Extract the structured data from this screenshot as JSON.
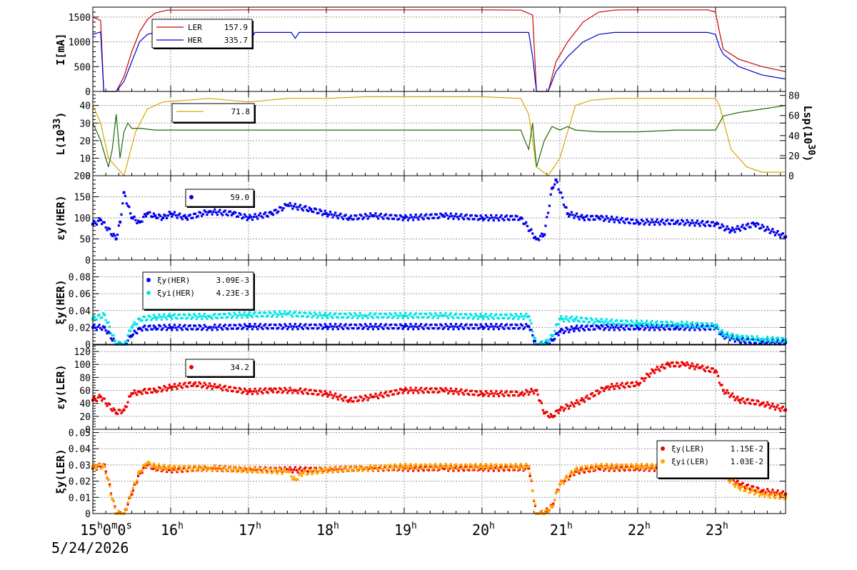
{
  "date_label": "5/24/2026",
  "chart_data": [
    {
      "type": "line",
      "ylabel": "I[mA]",
      "ylim": [
        0,
        1700
      ],
      "yticks": [
        0,
        500,
        1000,
        1500
      ],
      "legend": [
        {
          "name": "LER",
          "value": "157.9",
          "color": "#cc0000"
        },
        {
          "name": "HER",
          "value": "335.7",
          "color": "#0000cc"
        }
      ],
      "series": [
        {
          "name": "LER",
          "color": "#cc0000",
          "x": [
            0,
            0.1,
            0.14,
            0.2,
            0.3,
            0.4,
            0.5,
            0.6,
            0.7,
            0.8,
            0.95,
            1.5,
            2,
            3,
            4,
            5,
            5.5,
            5.65,
            5.7,
            5.75,
            5.85,
            5.95,
            6.1,
            6.3,
            6.5,
            6.7,
            6.8,
            7,
            7.5,
            7.9,
            8.0,
            8.05,
            8.1,
            8.3,
            8.6,
            8.9
          ],
          "y": [
            1500,
            1430,
            0,
            0,
            0,
            300,
            800,
            1200,
            1450,
            1580,
            1640,
            1640,
            1645,
            1645,
            1645,
            1645,
            1640,
            1540,
            0,
            0,
            0,
            600,
            1000,
            1400,
            1600,
            1640,
            1645,
            1645,
            1645,
            1645,
            1600,
            1200,
            850,
            650,
            500,
            400
          ]
        },
        {
          "name": "HER",
          "color": "#0000cc",
          "x": [
            0,
            0.1,
            0.14,
            0.2,
            0.3,
            0.4,
            0.5,
            0.6,
            0.7,
            0.8,
            0.95,
            1.5,
            1.95,
            2.02,
            2.08,
            2.3,
            2.55,
            2.6,
            2.65,
            3,
            4,
            5,
            5.6,
            5.65,
            5.7,
            5.75,
            5.85,
            5.95,
            6.1,
            6.3,
            6.5,
            6.7,
            7,
            7.5,
            7.9,
            8.0,
            8.05,
            8.1,
            8.3,
            8.6,
            8.9
          ],
          "y": [
            1150,
            1200,
            0,
            0,
            0,
            200,
            600,
            1000,
            1150,
            1190,
            1190,
            1190,
            1190,
            1000,
            1190,
            1190,
            1190,
            1070,
            1190,
            1190,
            1190,
            1190,
            1190,
            700,
            0,
            0,
            0,
            400,
            700,
            1000,
            1150,
            1190,
            1190,
            1190,
            1190,
            1150,
            900,
            750,
            500,
            330,
            250
          ]
        }
      ]
    },
    {
      "type": "line",
      "ylabel": "L(10 33 )",
      "ylabel_parts": [
        "L(10",
        "33",
        ")"
      ],
      "ylim": [
        0,
        48
      ],
      "yticks": [
        0,
        10,
        20,
        30,
        40
      ],
      "y2label_parts": [
        "Lsp(10",
        "30",
        ")"
      ],
      "y2lim": [
        0,
        84
      ],
      "y2ticks": [
        0,
        20,
        40,
        60,
        80
      ],
      "legend": [
        {
          "name": "",
          "value": "71.8",
          "color": "#d9a300"
        }
      ],
      "series": [
        {
          "name": "",
          "color": "#d9a300",
          "x": [
            0,
            0.1,
            0.2,
            0.4,
            0.55,
            0.7,
            0.9,
            1.2,
            1.5,
            2,
            2.5,
            3,
            3.5,
            4,
            4.5,
            5,
            5.5,
            5.6,
            5.7,
            5.85,
            6,
            6.2,
            6.4,
            6.7,
            7,
            7.5,
            8,
            8.05,
            8.2,
            8.4,
            8.6,
            8.9
          ],
          "y": [
            40,
            30,
            10,
            0,
            25,
            38,
            42,
            43,
            44,
            42,
            44,
            44,
            45,
            45,
            45,
            45,
            44,
            35,
            5,
            0,
            10,
            40,
            43,
            44,
            44,
            44,
            44,
            40,
            15,
            5,
            2,
            2
          ]
        },
        {
          "name": "",
          "color": "#1f6b00",
          "x": [
            0,
            0.1,
            0.2,
            0.25,
            0.3,
            0.35,
            0.4,
            0.45,
            0.5,
            0.6,
            0.8,
            1.0,
            1.5,
            2,
            3,
            4,
            5,
            5.5,
            5.55,
            5.6,
            5.65,
            5.7,
            5.8,
            5.9,
            6,
            6.1,
            6.2,
            6.5,
            7,
            7.5,
            8,
            8.1,
            8.3,
            8.6,
            8.9
          ],
          "y": [
            30,
            20,
            5,
            15,
            35,
            10,
            25,
            30,
            27,
            27,
            26,
            26,
            26,
            26,
            26,
            26,
            26,
            26,
            20,
            15,
            30,
            5,
            20,
            28,
            26,
            28,
            26,
            25,
            25,
            26,
            26,
            34,
            36,
            38,
            40
          ]
        }
      ]
    },
    {
      "type": "scatter",
      "ylabel": "εy(HER)",
      "ylim": [
        0,
        200
      ],
      "yticks": [
        0,
        50,
        100,
        150,
        200
      ],
      "legend": [
        {
          "name": "",
          "value": "59.0",
          "color": "#0000ee"
        }
      ],
      "series": [
        {
          "name": "",
          "color": "#0000ee",
          "x": [
            0,
            0.1,
            0.3,
            0.35,
            0.4,
            0.5,
            0.6,
            0.7,
            0.8,
            0.9,
            1.0,
            1.2,
            1.5,
            1.8,
            2.0,
            2.3,
            2.5,
            2.8,
            3.0,
            3.3,
            3.6,
            4.0,
            4.5,
            5.0,
            5.5,
            5.7,
            5.8,
            5.9,
            5.95,
            6.1,
            6.3,
            6.5,
            7.0,
            7.5,
            8.0,
            8.2,
            8.5,
            8.9
          ],
          "y": [
            85,
            95,
            50,
            90,
            160,
            100,
            90,
            110,
            105,
            100,
            110,
            100,
            115,
            110,
            100,
            110,
            130,
            120,
            110,
            100,
            105,
            100,
            105,
            100,
            100,
            50,
            60,
            170,
            190,
            110,
            100,
            100,
            90,
            90,
            85,
            70,
            85,
            55
          ]
        }
      ]
    },
    {
      "type": "scatter",
      "ylabel": "ξy(HER)",
      "ylim": [
        0,
        0.1
      ],
      "yticks": [
        0,
        0.02,
        0.04,
        0.06,
        0.08
      ],
      "ytick_labels": [
        "0",
        "0.02",
        "0.04",
        "0.06",
        "0.08"
      ],
      "legend": [
        {
          "name": "ξy(HER)",
          "value": "3.09E-3",
          "color": "#0000ee"
        },
        {
          "name": "ξyi(HER)",
          "value": "4.23E-3",
          "color": "#00e5e5"
        }
      ],
      "series": [
        {
          "name": "ξy(HER)",
          "color": "#0000ee",
          "x": [
            0,
            0.15,
            0.3,
            0.4,
            0.5,
            0.6,
            0.8,
            1.0,
            1.5,
            2,
            3,
            4,
            5,
            5.6,
            5.7,
            5.8,
            5.9,
            6,
            6.2,
            6.5,
            7,
            7.5,
            8,
            8.1,
            8.3,
            8.6,
            8.9
          ],
          "y": [
            0.02,
            0.02,
            0,
            0,
            0.01,
            0.019,
            0.02,
            0.02,
            0.02,
            0.021,
            0.021,
            0.021,
            0.021,
            0.021,
            0,
            0,
            0.005,
            0.015,
            0.019,
            0.02,
            0.02,
            0.02,
            0.02,
            0.01,
            0.005,
            0.003,
            0.002
          ]
        },
        {
          "name": "ξyi(HER)",
          "color": "#00e5e5",
          "x": [
            0,
            0.15,
            0.3,
            0.4,
            0.5,
            0.6,
            0.8,
            1.0,
            1.5,
            2,
            2.5,
            3,
            3.5,
            4,
            4.5,
            5,
            5.6,
            5.7,
            5.8,
            5.9,
            6,
            6.2,
            6.5,
            7,
            7.5,
            8,
            8.1,
            8.3,
            8.6,
            8.9
          ],
          "y": [
            0.03,
            0.035,
            0,
            0,
            0.02,
            0.03,
            0.032,
            0.033,
            0.033,
            0.035,
            0.036,
            0.034,
            0.034,
            0.034,
            0.034,
            0.033,
            0.033,
            0,
            0,
            0.01,
            0.03,
            0.03,
            0.027,
            0.025,
            0.024,
            0.022,
            0.012,
            0.008,
            0.006,
            0.005
          ]
        }
      ]
    },
    {
      "type": "scatter",
      "ylabel": "εy(LER)",
      "ylim": [
        0,
        130
      ],
      "yticks": [
        0,
        20,
        40,
        60,
        80,
        100,
        120
      ],
      "legend": [
        {
          "name": "",
          "value": "34.2",
          "color": "#ee0000"
        }
      ],
      "series": [
        {
          "name": "",
          "color": "#ee0000",
          "x": [
            0,
            0.1,
            0.3,
            0.4,
            0.5,
            0.6,
            0.8,
            1.0,
            1.3,
            1.6,
            2.0,
            2.3,
            2.6,
            3.0,
            3.3,
            3.6,
            4.0,
            4.5,
            5.0,
            5.5,
            5.7,
            5.8,
            5.9,
            6.0,
            6.3,
            6.6,
            7.0,
            7.2,
            7.4,
            7.6,
            7.8,
            8.0,
            8.1,
            8.3,
            8.6,
            8.9
          ],
          "y": [
            45,
            50,
            25,
            30,
            55,
            58,
            60,
            65,
            70,
            65,
            58,
            60,
            60,
            55,
            45,
            50,
            60,
            60,
            55,
            55,
            60,
            25,
            20,
            30,
            45,
            65,
            70,
            90,
            100,
            100,
            95,
            90,
            60,
            45,
            40,
            30
          ]
        }
      ]
    },
    {
      "type": "scatter",
      "ylabel": "ξy(LER)",
      "ylim": [
        0,
        0.052
      ],
      "yticks": [
        0,
        0.01,
        0.02,
        0.03,
        0.04,
        0.05
      ],
      "ytick_labels": [
        "0",
        "0.01",
        "0.02",
        "0.03",
        "0.04",
        "0.05"
      ],
      "legend": [
        {
          "name": "ξy(LER)",
          "value": "1.15E-2",
          "color": "#ee0000"
        },
        {
          "name": "ξyi(LER)",
          "value": "1.03E-2",
          "color": "#ffa500"
        }
      ],
      "series": [
        {
          "name": "ξy(LER)",
          "color": "#ee0000",
          "x": [
            0,
            0.15,
            0.3,
            0.4,
            0.5,
            0.6,
            0.7,
            0.8,
            1.0,
            1.5,
            2,
            2.5,
            3,
            3.5,
            4,
            4.5,
            5,
            5.6,
            5.7,
            5.8,
            5.9,
            6,
            6.2,
            6.5,
            7,
            7.5,
            8,
            8.1,
            8.3,
            8.6,
            8.9
          ],
          "y": [
            0.028,
            0.03,
            0,
            0,
            0.012,
            0.025,
            0.03,
            0.028,
            0.027,
            0.028,
            0.027,
            0.027,
            0.027,
            0.028,
            0.028,
            0.028,
            0.028,
            0.028,
            0,
            0,
            0.005,
            0.018,
            0.026,
            0.028,
            0.028,
            0.028,
            0.028,
            0.025,
            0.018,
            0.014,
            0.012
          ]
        },
        {
          "name": "ξyi(LER)",
          "color": "#ffa500",
          "x": [
            0,
            0.15,
            0.3,
            0.4,
            0.5,
            0.6,
            0.7,
            0.8,
            1.0,
            1.5,
            2,
            2.5,
            2.6,
            2.7,
            3,
            3.5,
            4,
            4.5,
            5,
            5.6,
            5.7,
            5.8,
            5.9,
            6,
            6.2,
            6.5,
            7,
            7.5,
            8,
            8.1,
            8.3,
            8.6,
            8.9
          ],
          "y": [
            0.029,
            0.029,
            0,
            0,
            0.013,
            0.026,
            0.031,
            0.029,
            0.028,
            0.028,
            0.027,
            0.026,
            0.021,
            0.025,
            0.027,
            0.028,
            0.029,
            0.029,
            0.029,
            0.029,
            0,
            0,
            0.004,
            0.018,
            0.027,
            0.029,
            0.029,
            0.029,
            0.03,
            0.024,
            0.016,
            0.012,
            0.01
          ]
        }
      ]
    }
  ],
  "x_axis": {
    "range_hours": [
      0,
      8.9
    ],
    "ticks": [
      {
        "x": 0,
        "label": "15",
        "sup": "h",
        "rest": "0",
        "sup2": "m",
        "rest2": "0",
        "sup3": "s"
      },
      {
        "x": 1,
        "label": "16",
        "sup": "h"
      },
      {
        "x": 2,
        "label": "17",
        "sup": "h"
      },
      {
        "x": 3,
        "label": "18",
        "sup": "h"
      },
      {
        "x": 4,
        "label": "19",
        "sup": "h"
      },
      {
        "x": 5,
        "label": "20",
        "sup": "h"
      },
      {
        "x": 6,
        "label": "21",
        "sup": "h"
      },
      {
        "x": 7,
        "label": "22",
        "sup": "h"
      },
      {
        "x": 8,
        "label": "23",
        "sup": "h"
      }
    ]
  }
}
